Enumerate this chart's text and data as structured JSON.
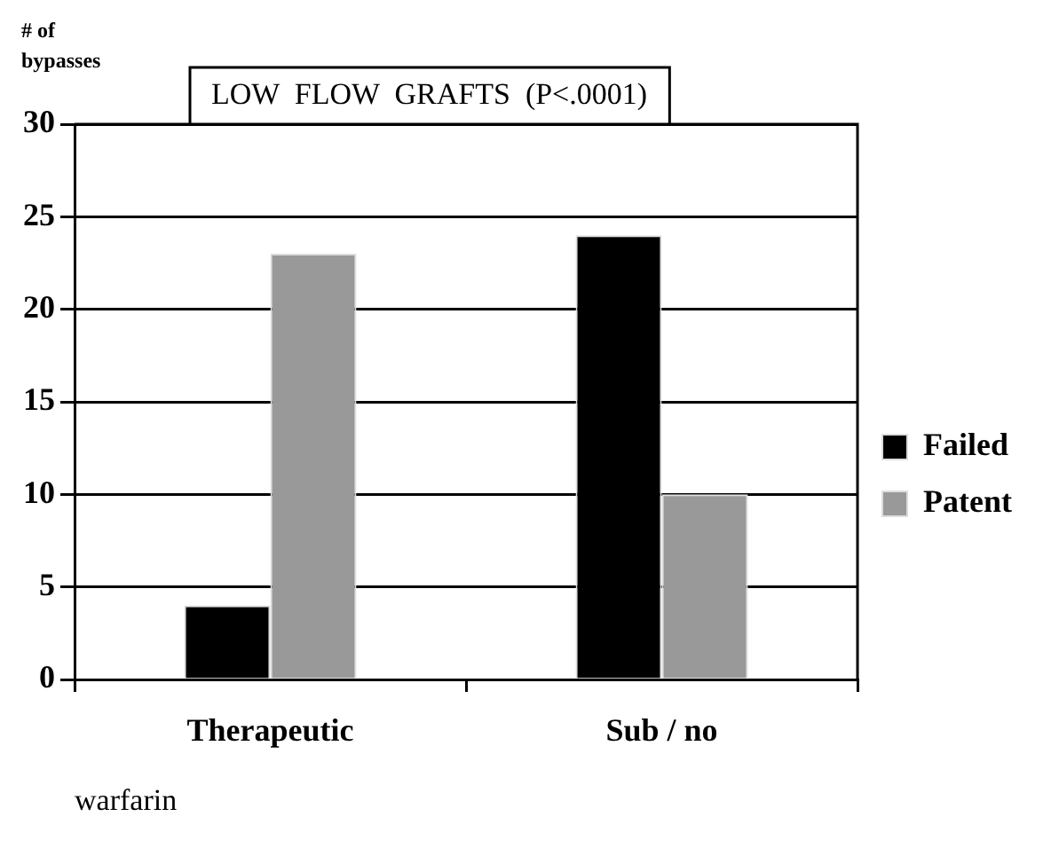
{
  "chart_data": {
    "type": "bar",
    "title": "LOW  FLOW  GRAFTS  (P<.0001)",
    "ylabel": "# of bypasses",
    "xlabel": "warfarin",
    "categories": [
      "Therapeutic",
      "Sub / no"
    ],
    "series": [
      {
        "name": "Failed",
        "color": "#000000",
        "values": [
          4,
          24
        ]
      },
      {
        "name": "Patent",
        "color": "#999999",
        "values": [
          23,
          10
        ]
      }
    ],
    "ylim": [
      0,
      30
    ],
    "yticks": [
      0,
      5,
      10,
      15,
      20,
      25,
      30
    ],
    "grid": "y",
    "legend": "right"
  }
}
